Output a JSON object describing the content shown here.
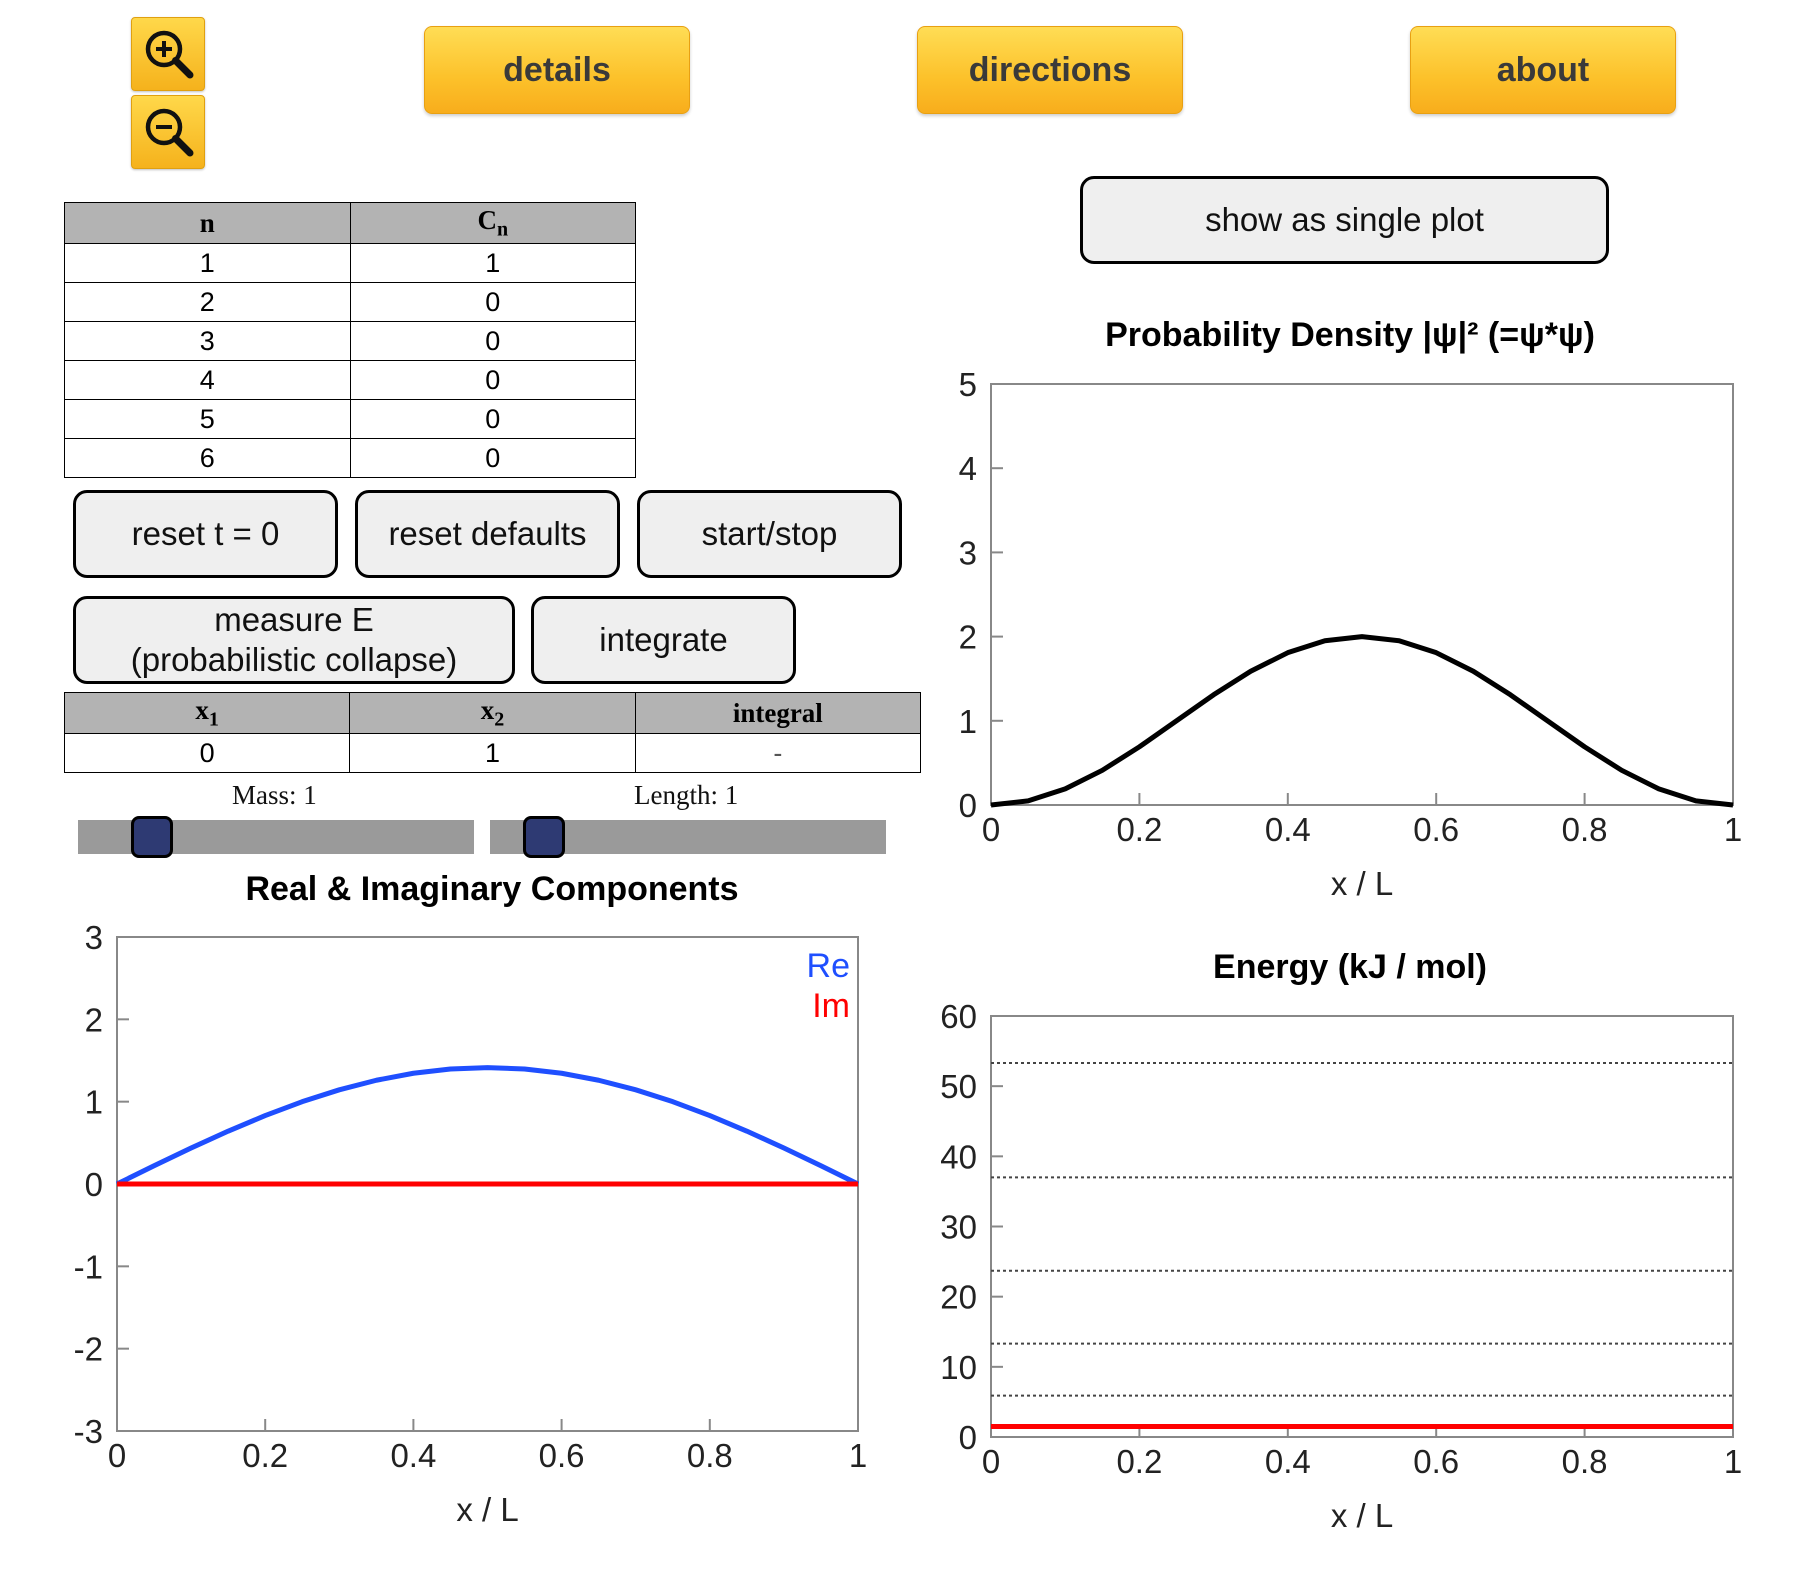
{
  "toolbar": {
    "zoom_in_icon": "zoom-in-icon",
    "zoom_out_icon": "zoom-out-icon",
    "details_label": "details",
    "directions_label": "directions",
    "about_label": "about"
  },
  "coef_table": {
    "headers": [
      "n",
      "C",
      "n"
    ],
    "rows": [
      {
        "n": "1",
        "c": "1"
      },
      {
        "n": "2",
        "c": "0"
      },
      {
        "n": "3",
        "c": "0"
      },
      {
        "n": "4",
        "c": "0"
      },
      {
        "n": "5",
        "c": "0"
      },
      {
        "n": "6",
        "c": "0"
      }
    ]
  },
  "controls": {
    "reset_t_label": "reset t = 0",
    "reset_defaults_label": "reset defaults",
    "start_stop_label": "start/stop",
    "measure_line1": "measure E",
    "measure_line2": "(probabilistic collapse)",
    "integrate_label": "integrate",
    "single_plot_label": "show as single plot"
  },
  "integral_table": {
    "x1_label": "x",
    "x1_sub": "1",
    "x2_label": "x",
    "x2_sub": "2",
    "integral_label": "integral",
    "x1_value": "0",
    "x2_value": "1",
    "integral_value": "-"
  },
  "sliders": {
    "mass_label": "Mass: 1",
    "mass_level": 0.07,
    "length_label": "Length: 1",
    "length_level": 0.01
  },
  "chart_data": [
    {
      "type": "line",
      "title": "Probability Density |ψ|² (=ψ*ψ)",
      "xlabel": "x / L",
      "ylabel": "",
      "xlim": [
        0,
        1
      ],
      "ylim": [
        0,
        5
      ],
      "xticks": [
        "0",
        "0.2",
        "0.4",
        "0.6",
        "0.8",
        "1"
      ],
      "yticks": [
        "0",
        "1",
        "2",
        "3",
        "4",
        "5"
      ],
      "series": [
        {
          "color": "#000000",
          "x": [
            0,
            0.05,
            0.1,
            0.15,
            0.2,
            0.25,
            0.3,
            0.35,
            0.4,
            0.45,
            0.5,
            0.55,
            0.6,
            0.65,
            0.7,
            0.75,
            0.8,
            0.85,
            0.9,
            0.95,
            1
          ],
          "y": [
            0,
            0.049,
            0.191,
            0.412,
            0.691,
            1.0,
            1.309,
            1.588,
            1.809,
            1.951,
            2.0,
            1.951,
            1.809,
            1.588,
            1.309,
            1.0,
            0.691,
            0.412,
            0.191,
            0.049,
            0
          ]
        }
      ]
    },
    {
      "type": "line",
      "title": "Real & Imaginary Components",
      "xlabel": "x / L",
      "ylabel": "",
      "xlim": [
        0,
        1
      ],
      "ylim": [
        -3,
        3
      ],
      "xticks": [
        "0",
        "0.2",
        "0.4",
        "0.6",
        "0.8",
        "1"
      ],
      "yticks": [
        "-3",
        "-2",
        "-1",
        "0",
        "1",
        "2",
        "3"
      ],
      "legend": "top-right",
      "series": [
        {
          "name": "Re",
          "color": "#1f4fff",
          "x": [
            0,
            0.05,
            0.1,
            0.15,
            0.2,
            0.25,
            0.3,
            0.35,
            0.4,
            0.45,
            0.5,
            0.55,
            0.6,
            0.65,
            0.7,
            0.75,
            0.8,
            0.85,
            0.9,
            0.95,
            1
          ],
          "y": [
            0,
            0.221,
            0.437,
            0.642,
            0.831,
            1.0,
            1.144,
            1.26,
            1.345,
            1.397,
            1.414,
            1.397,
            1.345,
            1.26,
            1.144,
            1.0,
            0.831,
            0.642,
            0.437,
            0.221,
            0
          ]
        },
        {
          "name": "Im",
          "color": "#ff0000",
          "x": [
            0,
            1
          ],
          "y": [
            0,
            0
          ]
        }
      ]
    },
    {
      "type": "line",
      "title": "Energy (kJ / mol)",
      "xlabel": "x / L",
      "ylabel": "",
      "xlim": [
        0,
        1
      ],
      "ylim": [
        0,
        60
      ],
      "xticks": [
        "0",
        "0.2",
        "0.4",
        "0.6",
        "0.8",
        "1"
      ],
      "yticks": [
        "0",
        "10",
        "20",
        "30",
        "40",
        "50",
        "60"
      ],
      "levels": [
        1.5,
        5.9,
        13.3,
        23.7,
        37.0,
        53.3
      ],
      "series": [
        {
          "color": "#ff0000",
          "x": [
            0,
            1
          ],
          "y": [
            1.5,
            1.5
          ]
        }
      ]
    }
  ]
}
